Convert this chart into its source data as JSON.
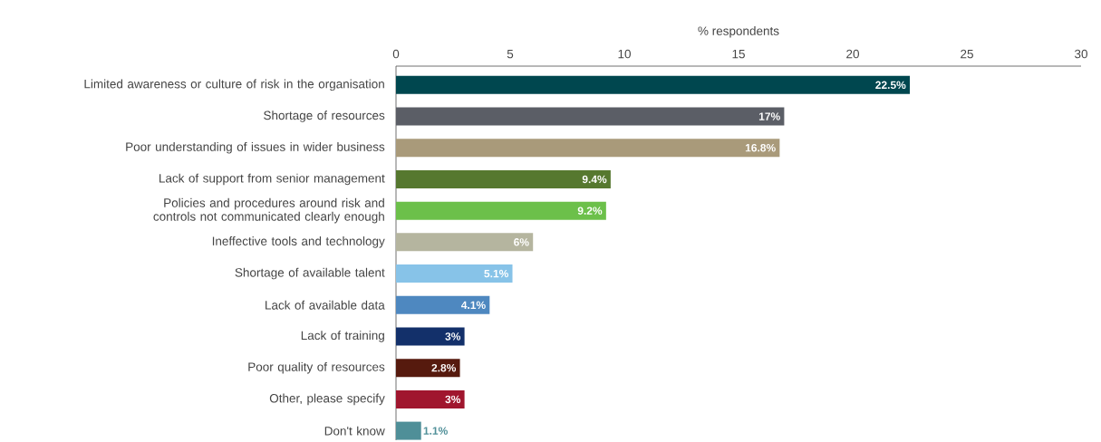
{
  "chart_data": {
    "type": "bar",
    "orientation": "horizontal",
    "xlabel": "% respondents",
    "categories": [
      "Limited awareness or culture of risk in the organisation",
      "Shortage of resources",
      "Poor understanding of issues in wider business",
      "Lack of support from senior management",
      "Policies and procedures around risk and controls not communicated clearly enough",
      "Ineffective tools and technology",
      "Shortage of available talent",
      "Lack of available data",
      "Lack of training",
      "Poor quality of resources",
      "Other, please specify",
      "Don't know"
    ],
    "values": [
      22.5,
      17,
      16.8,
      9.4,
      9.2,
      6,
      5.1,
      4.1,
      3,
      2.8,
      3,
      1.1
    ],
    "value_labels": [
      "22.5%",
      "17%",
      "16.8%",
      "9.4%",
      "9.2%",
      "6%",
      "5.1%",
      "4.1%",
      "3%",
      "2.8%",
      "3%",
      "1.1%"
    ],
    "colors": [
      "#00474f",
      "#5b5e66",
      "#a99a7a",
      "#56782f",
      "#6cc04a",
      "#b5b59f",
      "#87c3e8",
      "#4e88c0",
      "#13306a",
      "#561a0e",
      "#a0162e",
      "#4f8f98"
    ],
    "xlim": [
      0,
      30
    ],
    "xticks": [
      0,
      5,
      10,
      15,
      20,
      25,
      30
    ]
  }
}
